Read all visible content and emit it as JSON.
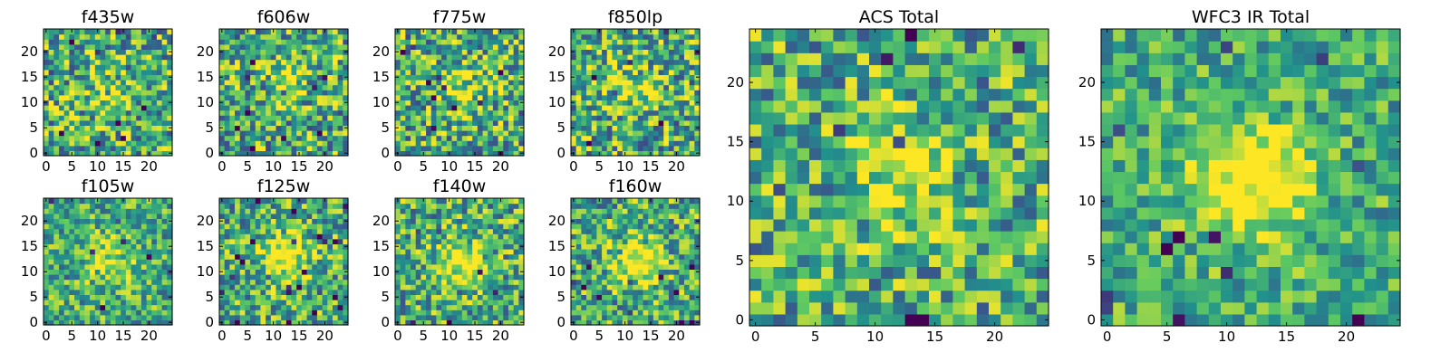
{
  "figure": {
    "colormap": [
      "#440154",
      "#3b528b",
      "#21918c",
      "#5ec962",
      "#fde725"
    ]
  },
  "chart_data": [
    {
      "type": "heatmap",
      "title": "f435w",
      "x_ticks": [
        "0",
        "5",
        "10",
        "15",
        "20"
      ],
      "y_ticks": [
        "0",
        "5",
        "10",
        "15",
        "20"
      ],
      "grid_size": 25,
      "xlim": [
        0,
        25
      ],
      "ylim": [
        0,
        25
      ],
      "peak": [
        12,
        11
      ],
      "peak_sigma": 3.5,
      "peak_amplitude": 0.15,
      "noise_level": 0.45,
      "seed": 11
    },
    {
      "type": "heatmap",
      "title": "f606w",
      "x_ticks": [
        "0",
        "5",
        "10",
        "15",
        "20"
      ],
      "y_ticks": [
        "0",
        "5",
        "10",
        "15",
        "20"
      ],
      "grid_size": 25,
      "xlim": [
        0,
        25
      ],
      "ylim": [
        0,
        25
      ],
      "peak": [
        12,
        14
      ],
      "peak_sigma": 3.5,
      "peak_amplitude": 0.2,
      "noise_level": 0.45,
      "seed": 23
    },
    {
      "type": "heatmap",
      "title": "f775w",
      "x_ticks": [
        "0",
        "5",
        "10",
        "15",
        "20"
      ],
      "y_ticks": [
        "0",
        "5",
        "10",
        "15",
        "20"
      ],
      "grid_size": 25,
      "xlim": [
        0,
        25
      ],
      "ylim": [
        0,
        25
      ],
      "peak": [
        13,
        13
      ],
      "peak_sigma": 3.5,
      "peak_amplitude": 0.25,
      "noise_level": 0.45,
      "seed": 37
    },
    {
      "type": "heatmap",
      "title": "f850lp",
      "x_ticks": [
        "0",
        "5",
        "10",
        "15",
        "20"
      ],
      "y_ticks": [
        "0",
        "5",
        "10",
        "15",
        "20"
      ],
      "grid_size": 25,
      "xlim": [
        0,
        25
      ],
      "ylim": [
        0,
        25
      ],
      "peak": [
        12,
        13
      ],
      "peak_sigma": 3.5,
      "peak_amplitude": 0.25,
      "noise_level": 0.45,
      "seed": 41
    },
    {
      "type": "heatmap",
      "title": "f105w",
      "x_ticks": [
        "0",
        "5",
        "10",
        "15",
        "20"
      ],
      "y_ticks": [
        "0",
        "5",
        "10",
        "15",
        "20"
      ],
      "grid_size": 25,
      "xlim": [
        0,
        25
      ],
      "ylim": [
        0,
        25
      ],
      "peak": [
        13,
        12
      ],
      "peak_sigma": 3.5,
      "peak_amplitude": 0.3,
      "noise_level": 0.35,
      "seed": 53
    },
    {
      "type": "heatmap",
      "title": "f125w",
      "x_ticks": [
        "0",
        "5",
        "10",
        "15",
        "20"
      ],
      "y_ticks": [
        "0",
        "5",
        "10",
        "15",
        "20"
      ],
      "grid_size": 25,
      "xlim": [
        0,
        25
      ],
      "ylim": [
        0,
        25
      ],
      "peak": [
        12,
        13
      ],
      "peak_sigma": 3.0,
      "peak_amplitude": 0.55,
      "noise_level": 0.4,
      "seed": 67
    },
    {
      "type": "heatmap",
      "title": "f140w",
      "x_ticks": [
        "0",
        "5",
        "10",
        "15",
        "20"
      ],
      "y_ticks": [
        "0",
        "5",
        "10",
        "15",
        "20"
      ],
      "grid_size": 25,
      "xlim": [
        0,
        25
      ],
      "ylim": [
        0,
        25
      ],
      "peak": [
        12,
        12
      ],
      "peak_sigma": 3.0,
      "peak_amplitude": 0.45,
      "noise_level": 0.4,
      "seed": 79
    },
    {
      "type": "heatmap",
      "title": "f160w",
      "x_ticks": [
        "0",
        "5",
        "10",
        "15",
        "20"
      ],
      "y_ticks": [
        "0",
        "5",
        "10",
        "15",
        "20"
      ],
      "grid_size": 25,
      "xlim": [
        0,
        25
      ],
      "ylim": [
        0,
        25
      ],
      "peak": [
        12,
        12
      ],
      "peak_sigma": 3.0,
      "peak_amplitude": 0.5,
      "noise_level": 0.4,
      "seed": 83
    },
    {
      "type": "heatmap",
      "title": "ACS Total",
      "x_ticks": [
        "0",
        "5",
        "10",
        "15",
        "20"
      ],
      "y_ticks": [
        "0",
        "5",
        "10",
        "15",
        "20"
      ],
      "grid_size": 25,
      "xlim": [
        0,
        25
      ],
      "ylim": [
        0,
        25
      ],
      "peak": [
        12,
        12
      ],
      "peak_sigma": 3.0,
      "peak_amplitude": 0.35,
      "noise_level": 0.4,
      "seed": 97
    },
    {
      "type": "heatmap",
      "title": "WFC3 IR Total",
      "x_ticks": [
        "0",
        "5",
        "10",
        "15",
        "20"
      ],
      "y_ticks": [
        "0",
        "5",
        "10",
        "15",
        "20"
      ],
      "grid_size": 25,
      "xlim": [
        0,
        25
      ],
      "ylim": [
        0,
        25
      ],
      "peak": [
        12,
        12
      ],
      "peak_sigma": 3.5,
      "peak_amplitude": 0.55,
      "noise_level": 0.3,
      "seed": 101
    }
  ]
}
